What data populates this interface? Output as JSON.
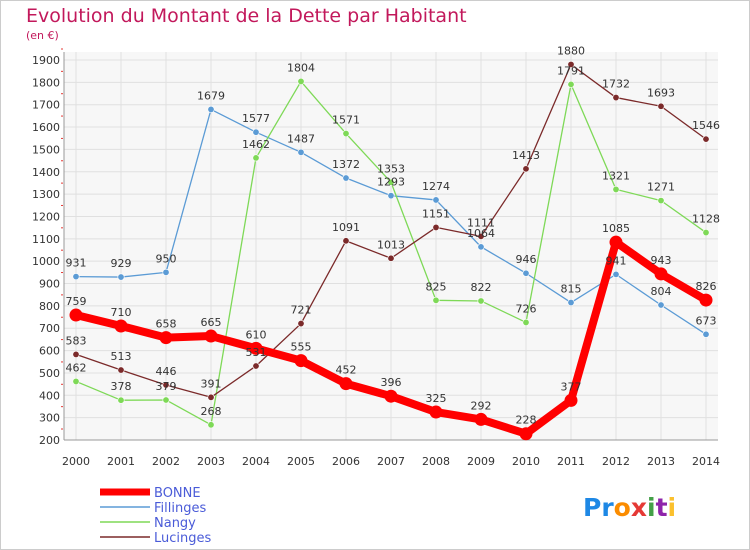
{
  "chart_data": {
    "type": "line",
    "title": "Evolution du Montant de la Dette par Habitant",
    "subtitle": "(en €)",
    "xlabel": "",
    "ylabel": "",
    "ylim": [
      200,
      1900
    ],
    "yticks": [
      200,
      300,
      400,
      500,
      600,
      700,
      800,
      900,
      1000,
      1100,
      1200,
      1300,
      1400,
      1500,
      1600,
      1700,
      1800,
      1900
    ],
    "categories": [
      "2000",
      "2001",
      "2002",
      "2003",
      "2004",
      "2005",
      "2006",
      "2007",
      "2008",
      "2009",
      "2010",
      "2011",
      "2012",
      "2013",
      "2014"
    ],
    "grid": true,
    "legend_position": "bottom-left",
    "series": [
      {
        "name": "BONNE",
        "color": "#ff0000",
        "emphasis": true,
        "values": [
          759,
          710,
          658,
          665,
          610,
          555,
          452,
          396,
          325,
          292,
          228,
          377,
          1085,
          943,
          826
        ]
      },
      {
        "name": "Fillinges",
        "color": "#5b9bd5",
        "values": [
          931,
          929,
          950,
          1679,
          1577,
          1487,
          1372,
          1293,
          1274,
          1064,
          946,
          815,
          941,
          804,
          673
        ]
      },
      {
        "name": "Nangy",
        "color": "#7ed957",
        "values": [
          462,
          378,
          379,
          268,
          1462,
          1804,
          1571,
          1353,
          825,
          822,
          726,
          1791,
          1321,
          1271,
          1128
        ]
      },
      {
        "name": "Lucinges",
        "color": "#7b2a2a",
        "values": [
          583,
          513,
          446,
          391,
          531,
          721,
          1091,
          1013,
          1151,
          1111,
          1413,
          1880,
          1732,
          1693,
          1546
        ]
      }
    ]
  },
  "logo": {
    "text": "Proxiti"
  }
}
